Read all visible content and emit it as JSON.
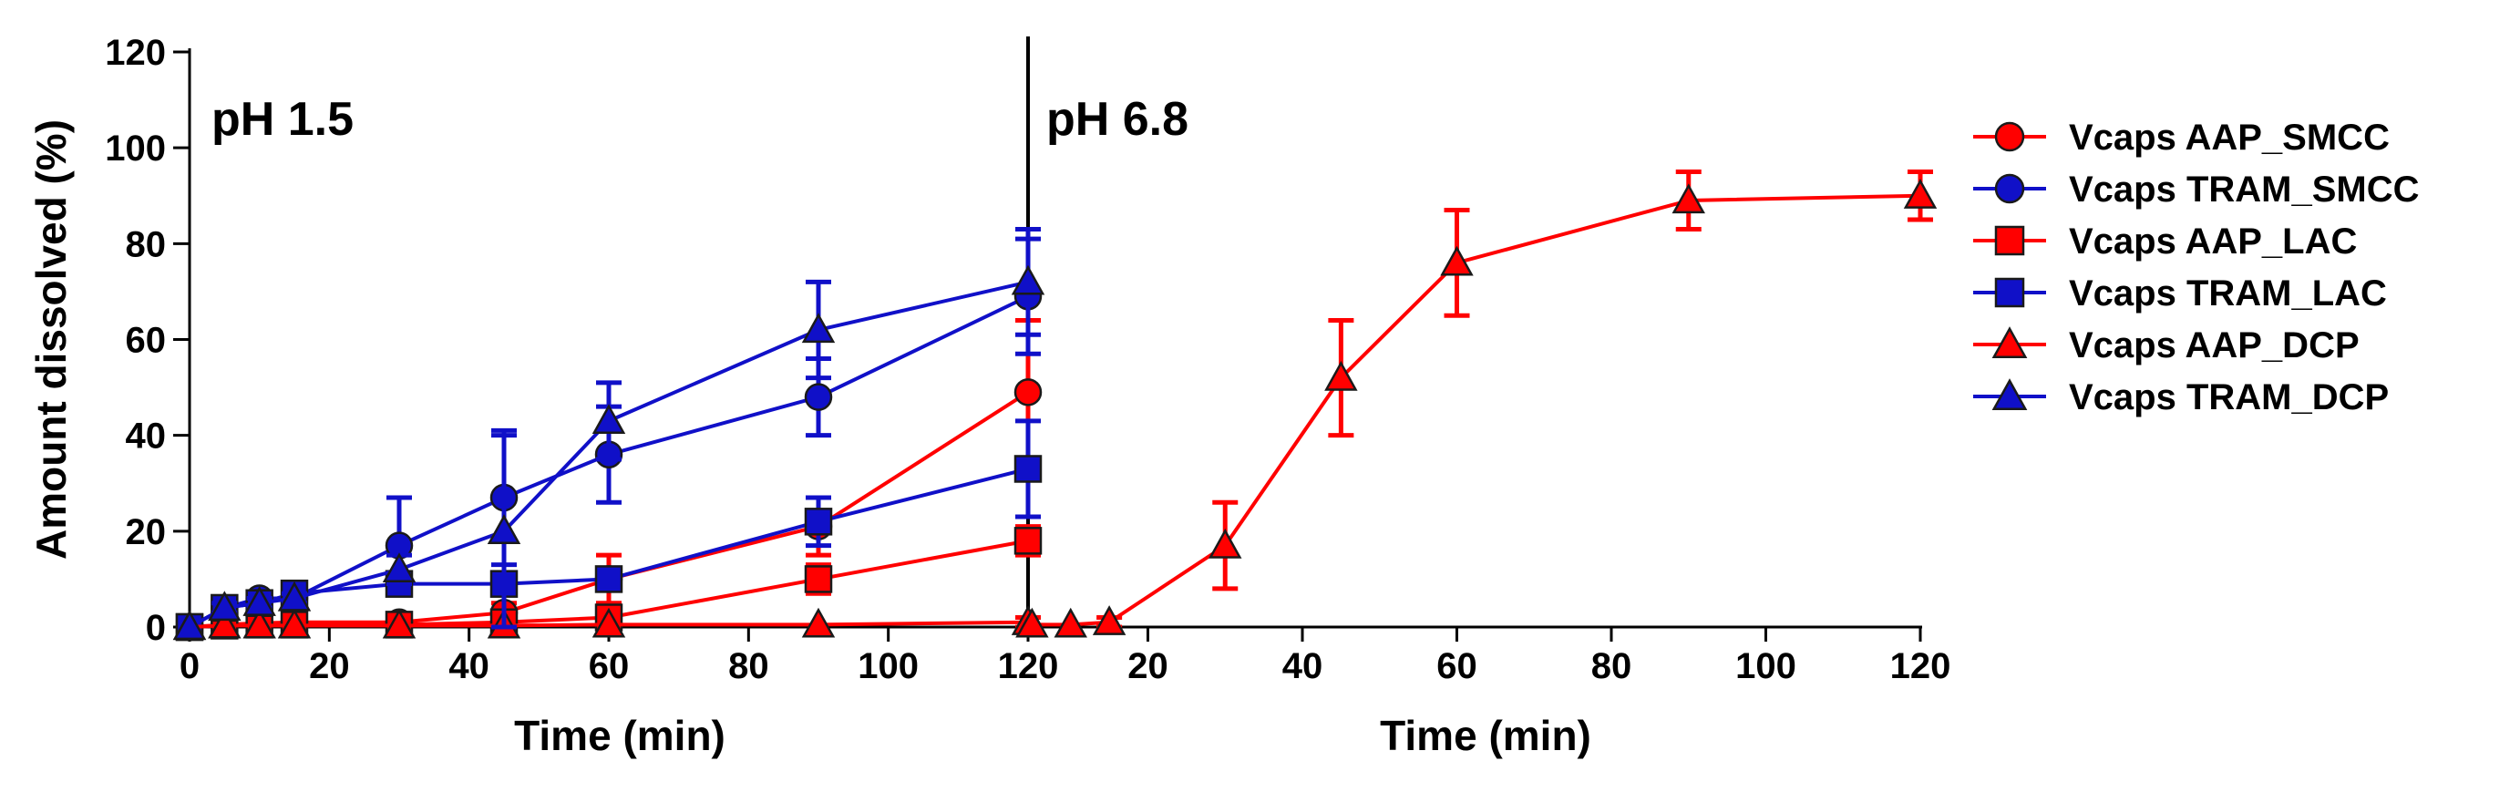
{
  "chart_data": {
    "type": "line",
    "ylabel": "Amount dissolved (%)",
    "ylim": [
      0,
      120
    ],
    "yticks": [
      0,
      20,
      40,
      60,
      80,
      100,
      120
    ],
    "panels": [
      {
        "label": "pH 1.5",
        "xlabel": "Time (min)",
        "xlim": [
          0,
          120
        ],
        "xticks": [
          0,
          20,
          40,
          60,
          80,
          100,
          120
        ]
      },
      {
        "label": "pH 6.8",
        "xlabel": "Time (min)",
        "xlim": [
          0,
          120
        ],
        "xticks": [
          20,
          40,
          60,
          80,
          100,
          120
        ]
      }
    ],
    "colors": {
      "AAP": "#ff0000",
      "TRAM": "#1010c8"
    },
    "series": [
      {
        "name": "Vcaps AAP_SMCC",
        "color": "#ff0000",
        "marker": "circle",
        "panel": 0,
        "points": [
          [
            0,
            0,
            0
          ],
          [
            5,
            0.5,
            0.5
          ],
          [
            10,
            0.8,
            0.5
          ],
          [
            15,
            1,
            0.5
          ],
          [
            30,
            1,
            1
          ],
          [
            45,
            3,
            2
          ],
          [
            60,
            10,
            5
          ],
          [
            90,
            21,
            6
          ],
          [
            120,
            49,
            15
          ]
        ]
      },
      {
        "name": "Vcaps TRAM_SMCC",
        "color": "#1010c8",
        "marker": "circle",
        "panel": 0,
        "points": [
          [
            0,
            0,
            0
          ],
          [
            5,
            4,
            1
          ],
          [
            10,
            6,
            1
          ],
          [
            15,
            6,
            1
          ],
          [
            30,
            17,
            10
          ],
          [
            45,
            27,
            14
          ],
          [
            60,
            36,
            10
          ],
          [
            90,
            48,
            8
          ],
          [
            120,
            69,
            12
          ]
        ]
      },
      {
        "name": "Vcaps AAP_LAC",
        "color": "#ff0000",
        "marker": "square",
        "panel": 0,
        "points": [
          [
            0,
            0,
            0
          ],
          [
            5,
            0.3,
            0.5
          ],
          [
            10,
            0.5,
            0.5
          ],
          [
            15,
            0.5,
            0.5
          ],
          [
            30,
            0.5,
            0.5
          ],
          [
            45,
            1,
            1
          ],
          [
            60,
            2,
            2
          ],
          [
            90,
            10,
            3
          ],
          [
            120,
            18,
            3
          ]
        ]
      },
      {
        "name": "Vcaps TRAM_LAC",
        "color": "#1010c8",
        "marker": "square",
        "panel": 0,
        "points": [
          [
            0,
            0,
            0
          ],
          [
            5,
            4,
            1
          ],
          [
            10,
            5,
            1
          ],
          [
            15,
            7,
            2
          ],
          [
            30,
            9,
            2
          ],
          [
            45,
            9,
            2
          ],
          [
            60,
            10,
            2
          ],
          [
            90,
            22,
            5
          ],
          [
            120,
            33,
            10
          ]
        ]
      },
      {
        "name": "Vcaps AAP_DCP",
        "color": "#ff0000",
        "marker": "triangle",
        "segments": [
          {
            "panel": 0,
            "points": [
              [
                0,
                0,
                0
              ],
              [
                5,
                0.3,
                0.5
              ],
              [
                10,
                0.3,
                0.5
              ],
              [
                15,
                0.3,
                0.5
              ],
              [
                30,
                0.3,
                0.5
              ],
              [
                45,
                0.3,
                0.5
              ],
              [
                60,
                0.5,
                0.5
              ],
              [
                90,
                0.5,
                0.5
              ],
              [
                120,
                1,
                1
              ]
            ]
          },
          {
            "panel": 1,
            "points": [
              [
                5,
                0.5,
                0.5
              ],
              [
                10,
                0.5,
                0.5
              ],
              [
                15,
                1,
                1
              ],
              [
                30,
                17,
                9
              ],
              [
                45,
                52,
                12
              ],
              [
                60,
                76,
                11
              ],
              [
                90,
                89,
                6
              ],
              [
                120,
                90,
                5
              ]
            ]
          }
        ]
      },
      {
        "name": "Vcaps TRAM_DCP",
        "color": "#1010c8",
        "marker": "triangle",
        "panel": 0,
        "points": [
          [
            0,
            0,
            0
          ],
          [
            5,
            4,
            1
          ],
          [
            10,
            5,
            1
          ],
          [
            15,
            6,
            1
          ],
          [
            30,
            12,
            3
          ],
          [
            45,
            20,
            20
          ],
          [
            60,
            43,
            8
          ],
          [
            90,
            62,
            10
          ],
          [
            120,
            72,
            11
          ]
        ]
      }
    ]
  }
}
